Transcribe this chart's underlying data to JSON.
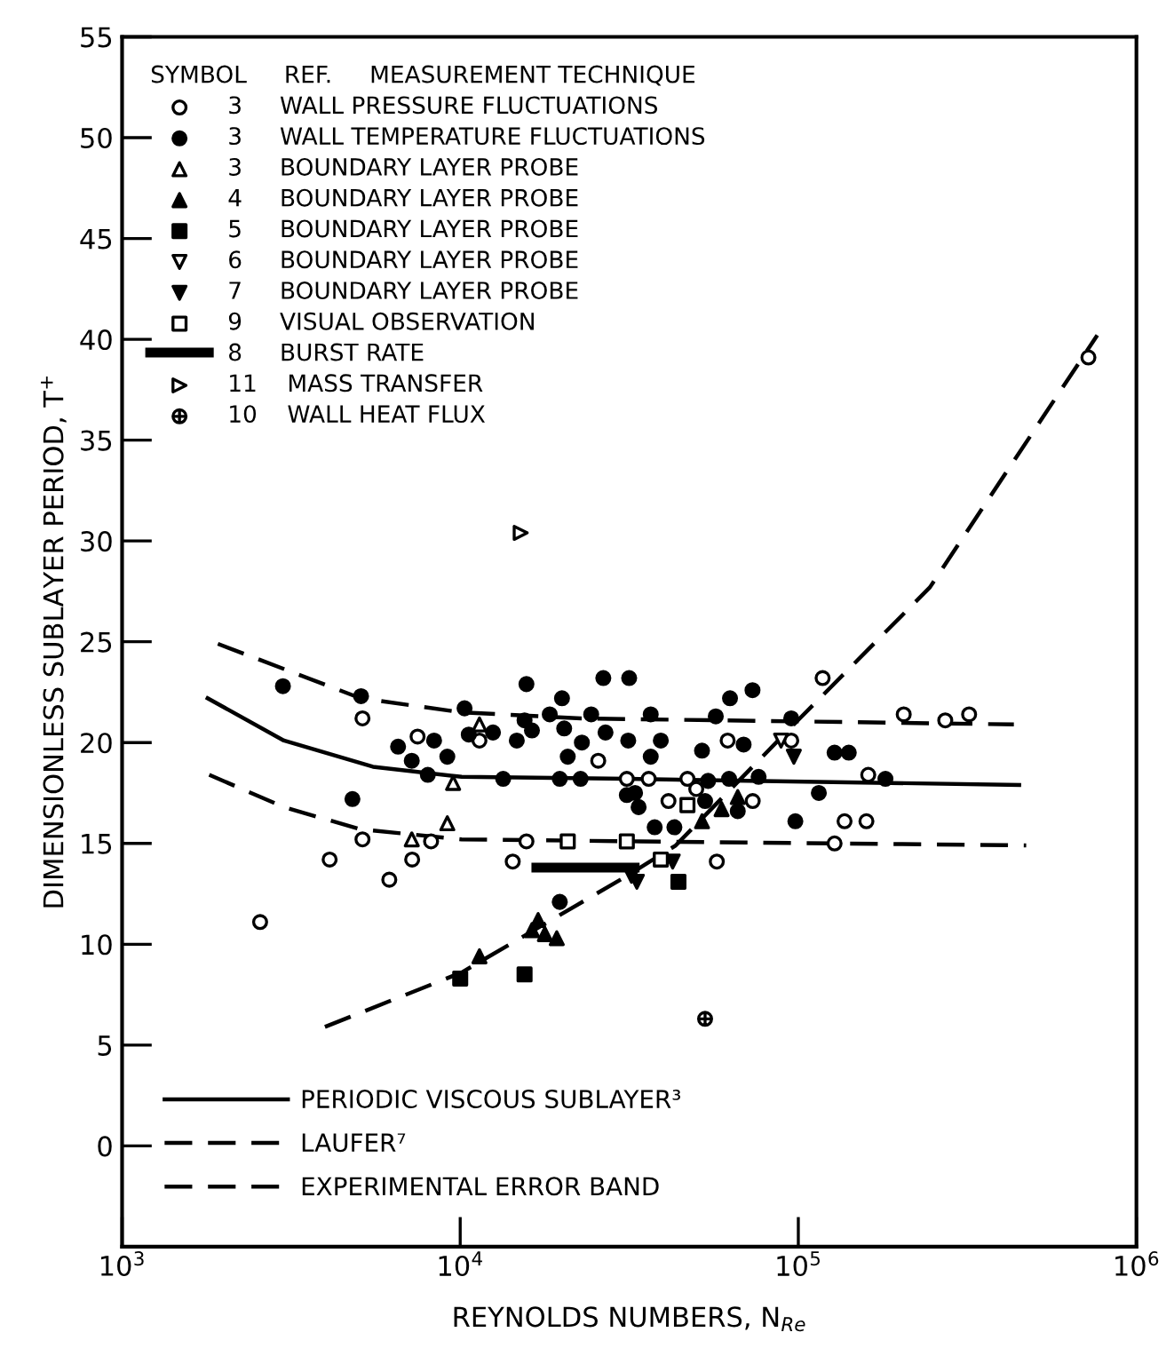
{
  "chart_data": {
    "type": "scatter",
    "xlabel": "REYNOLDS NUMBERS, N$_{Re}$",
    "ylabel": "DIMENSIONLESS SUBLAYER PERIOD, T$^{+}$",
    "legend_title": "SYMBOL     REF.     MEASUREMENT TECHNIQUE",
    "log": "x",
    "xlim": [
      1000,
      1000000
    ],
    "ylim": [
      -5,
      55
    ],
    "xticks": [
      {
        "value": 1000,
        "label": "10$^{3}$"
      },
      {
        "value": 10000,
        "label": "10$^{4}$"
      },
      {
        "value": 100000,
        "label": "10$^{5}$"
      },
      {
        "value": 1000000,
        "label": "10$^{6}$"
      }
    ],
    "yticks": [
      0,
      5,
      10,
      15,
      20,
      25,
      30,
      35,
      40,
      45,
      50,
      55
    ],
    "grid": false,
    "legend": "left",
    "series": [
      {
        "name": "3     WALL PRESSURE FLUCTUATIONS",
        "color": "#000000",
        "marker": "circle-open",
        "x": [
          5140,
          7480,
          11400,
          25600,
          31100,
          5140,
          8200,
          15700,
          4110,
          7210,
          14300,
          6170,
          2560,
          118000,
          36100,
          47000,
          49900,
          61800,
          73300,
          95300,
          161000,
          205000,
          272000,
          320000,
          137000,
          159000,
          128000,
          57400,
          41300,
          721000
        ],
        "values": [
          21.2,
          20.3,
          20.1,
          19.1,
          18.2,
          15.2,
          15.1,
          15.1,
          14.2,
          14.2,
          14.1,
          13.2,
          11.1,
          23.2,
          18.2,
          18.2,
          17.7,
          20.1,
          17.1,
          20.1,
          18.4,
          21.4,
          21.1,
          21.4,
          16.1,
          16.1,
          15.0,
          14.1,
          17.1,
          39.1
        ]
      },
      {
        "name": "3     WALL TEMPERATURE FLUCTUATIONS",
        "color": "#000000",
        "marker": "circle",
        "x": [
          2990,
          5090,
          10300,
          15700,
          20000,
          26500,
          31600,
          18400,
          24400,
          15500,
          6550,
          8370,
          9160,
          7190,
          8020,
          10600,
          12500,
          14700,
          16300,
          20300,
          22900,
          20800,
          26900,
          31400,
          13400,
          19700,
          22700,
          4800,
          31100,
          62800,
          73200,
          36600,
          57000,
          95300,
          39200,
          36600,
          51900,
          68900,
          128000,
          141000,
          32900,
          33700,
          54100,
          62400,
          76300,
          181000,
          115000,
          37600,
          43000,
          98000,
          53000,
          66200,
          19700
        ],
        "values": [
          22.8,
          22.3,
          21.7,
          22.9,
          22.2,
          23.2,
          23.2,
          21.4,
          21.4,
          21.1,
          19.8,
          20.1,
          19.3,
          19.1,
          18.4,
          20.4,
          20.5,
          20.1,
          20.6,
          20.7,
          20.0,
          19.3,
          20.5,
          20.1,
          18.2,
          18.2,
          18.2,
          17.2,
          17.4,
          22.2,
          22.6,
          21.4,
          21.3,
          21.2,
          20.1,
          19.3,
          19.6,
          19.9,
          19.5,
          19.5,
          17.5,
          16.8,
          18.1,
          18.2,
          18.3,
          18.2,
          17.5,
          15.8,
          15.8,
          16.1,
          17.1,
          16.6,
          12.1
        ]
      },
      {
        "name": "3     BOUNDARY LAYER PROBE",
        "color": "#000000",
        "marker": "triangle-open",
        "x": [
          11400,
          9530,
          9160,
          7190
        ],
        "values": [
          20.9,
          18.0,
          16.0,
          15.2
        ]
      },
      {
        "name": "4     BOUNDARY LAYER PROBE",
        "color": "#000000",
        "marker": "triangle",
        "x": [
          11400,
          16300,
          17800,
          19300,
          17000,
          51900,
          59300,
          66200
        ],
        "values": [
          9.4,
          10.7,
          10.5,
          10.3,
          11.2,
          16.1,
          16.7,
          17.3
        ]
      },
      {
        "name": "5     BOUNDARY LAYER PROBE",
        "color": "#000000",
        "marker": "square",
        "x": [
          15500,
          10000,
          44200
        ],
        "values": [
          8.5,
          8.3,
          13.1
        ]
      },
      {
        "name": "6     BOUNDARY LAYER PROBE",
        "color": "#000000",
        "marker": "triangle_down-open",
        "x": [
          88900
        ],
        "values": [
          20.1
        ]
      },
      {
        "name": "7     BOUNDARY LAYER PROBE",
        "color": "#000000",
        "marker": "triangle_down",
        "x": [
          97000,
          33300,
          42500,
          32100
        ],
        "values": [
          19.3,
          13.1,
          14.1,
          13.4
        ]
      },
      {
        "name": "9     VISUAL OBSERVATION",
        "color": "#000000",
        "marker": "square-open",
        "x": [
          20800,
          31100,
          47000,
          39200
        ],
        "values": [
          15.1,
          15.1,
          16.9,
          14.2
        ]
      },
      {
        "name": "8     BURST RATE",
        "type": "line",
        "color": "#000000",
        "marker": "none",
        "line_style": "solid",
        "x": [
          16800,
          32800
        ],
        "values": [
          13.8,
          13.8
        ]
      },
      {
        "name": "11    MASS TRANSFER",
        "color": "#000000",
        "marker": "triangle_right-open",
        "x": [
          15100
        ],
        "values": [
          30.4
        ]
      },
      {
        "name": "10    WALL HEAT FLUX",
        "color": "#000000",
        "marker": "cross-open",
        "x": [
          53000
        ],
        "values": [
          6.3
        ]
      },
      {
        "name": "PERIODIC VISCOUS SUBLAYER³",
        "type": "line",
        "color": "#000000",
        "line_style": "solid",
        "x": [
          1790,
          3010,
          5520,
          10100,
          31200,
          450000
        ],
        "values": [
          22.2,
          20.1,
          18.8,
          18.3,
          18.2,
          17.9
        ]
      },
      {
        "name": "LAUFER⁷",
        "type": "line",
        "color": "#000000",
        "line_style": "dashed",
        "x": [
          3980,
          10100,
          31200,
          43400,
          101000,
          245000,
          766000
        ],
        "values": [
          5.9,
          8.6,
          13.4,
          14.9,
          21.2,
          27.7,
          40.2
        ]
      },
      {
        "name": "EXPERIMENTAL ERROR BAND",
        "type": "line",
        "color": "#000000",
        "line_style": "dashed",
        "x": [
          1920,
          5070,
          10100,
          22800,
          434000
        ],
        "values": [
          24.9,
          22.2,
          21.5,
          21.2,
          20.9
        ]
      },
      {
        "type": "line",
        "color": "#000000",
        "line_style": "dashed",
        "x": [
          1810,
          3010,
          5070,
          10100,
          34000,
          472000
        ],
        "values": [
          18.4,
          16.8,
          15.7,
          15.2,
          15.1,
          14.9
        ]
      }
    ]
  }
}
